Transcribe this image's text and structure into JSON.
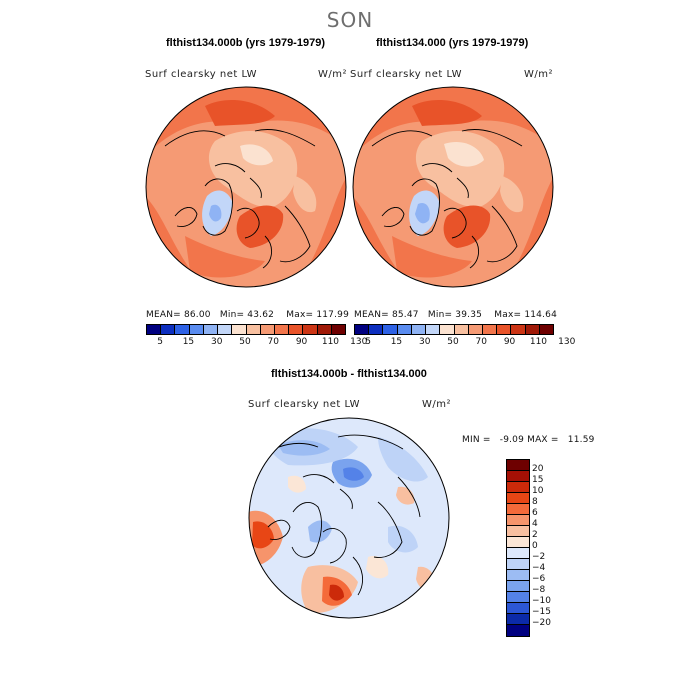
{
  "page": {
    "season": "SON"
  },
  "panels": [
    {
      "title": "flthist134.000b (yrs 1979-1979)",
      "field": "Surf clearsky net LW",
      "units": "W/m²",
      "stats": {
        "mean_label": "MEAN=",
        "mean": "86.00",
        "min_label": "Min=",
        "min": "43.62",
        "max_label": "Max=",
        "max": "117.99"
      },
      "colorbar_ticks": [
        "5",
        "15",
        "30",
        "50",
        "70",
        "90",
        "110",
        "130"
      ]
    },
    {
      "title": "flthist134.000 (yrs 1979-1979)",
      "field": "Surf clearsky net LW",
      "units": "W/m²",
      "stats": {
        "mean_label": "MEAN=",
        "mean": "85.47",
        "min_label": "Min=",
        "min": "39.35",
        "max_label": "Max=",
        "max": "114.64"
      },
      "colorbar_ticks": [
        "5",
        "15",
        "30",
        "50",
        "70",
        "90",
        "110",
        "130"
      ]
    }
  ],
  "diff_panel": {
    "title": "flthist134.000b - flthist134.000",
    "field": "Surf clearsky net LW",
    "units": "W/m²",
    "stats": {
      "min_label": "MIN =",
      "min": "-9.09",
      "max_label": "MAX =",
      "max": "11.59"
    },
    "colorbar_ticks": [
      "20",
      "15",
      "10",
      "8",
      "6",
      "4",
      "2",
      "0",
      "−2",
      "−4",
      "−6",
      "−8",
      "−10",
      "−15",
      "−20"
    ]
  },
  "colors": {
    "abs_scale": [
      "#000080",
      "#0d2fbf",
      "#2e62e6",
      "#5a8cf0",
      "#8fb3f4",
      "#c2d6f8",
      "#fbe2d0",
      "#f8c0a0",
      "#f59a74",
      "#f2754b",
      "#e85329",
      "#cc3515",
      "#a01a08",
      "#6e0000"
    ],
    "diff_scale": [
      "#6e0000",
      "#a51005",
      "#cc2a0a",
      "#e84615",
      "#f46a3a",
      "#f6946b",
      "#f8bfa0",
      "#fbe6d6",
      "#dde8fb",
      "#bed3f7",
      "#9cbcf3",
      "#7aa3ee",
      "#5482e8",
      "#2c57d6",
      "#0b2aa8",
      "#000080"
    ]
  }
}
